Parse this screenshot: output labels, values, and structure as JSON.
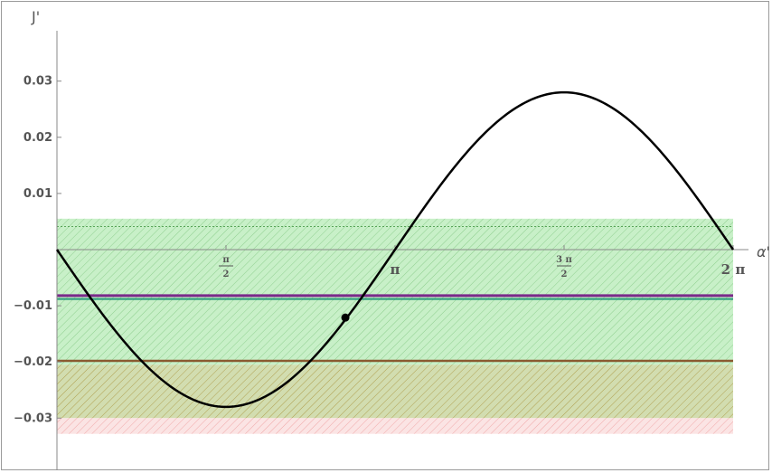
{
  "chart_data": {
    "type": "line",
    "title": "",
    "xlabel": "α'",
    "ylabel": "J'",
    "xlim": [
      0,
      6.2832
    ],
    "ylim": [
      -0.036,
      0.038
    ],
    "y_ticks": [
      {
        "value": 0.03,
        "label": "0.03"
      },
      {
        "value": 0.02,
        "label": "0.02"
      },
      {
        "value": 0.01,
        "label": "0.01"
      },
      {
        "value": -0.01,
        "label": "−0.01"
      },
      {
        "value": -0.02,
        "label": "−0.02"
      },
      {
        "value": -0.03,
        "label": "−0.03"
      }
    ],
    "x_ticks": [
      {
        "value": 1.5708,
        "num": "π",
        "den": "2",
        "label": ""
      },
      {
        "value": 3.1416,
        "num": "",
        "den": "",
        "label": "π"
      },
      {
        "value": 4.7124,
        "num": "3 π",
        "den": "2",
        "label": ""
      },
      {
        "value": 6.2832,
        "num": "",
        "den": "",
        "label": "2 π"
      }
    ],
    "curve": {
      "function": "J' = -0.028 sin(α')",
      "x": [
        0,
        0.3927,
        0.7854,
        1.1781,
        1.5708,
        1.9635,
        2.3562,
        2.7489,
        3.1416,
        3.5343,
        3.927,
        4.3197,
        4.7124,
        5.1051,
        5.4978,
        5.8905,
        6.2832
      ],
      "y": [
        0,
        -0.0107,
        -0.0198,
        -0.0259,
        -0.028,
        -0.0259,
        -0.0198,
        -0.0107,
        0,
        0.0107,
        0.0198,
        0.0259,
        0.028,
        0.0259,
        0.0198,
        0.0107,
        0
      ],
      "color": "#000000"
    },
    "marker_point": {
      "x": 2.68,
      "y": -0.0121
    },
    "bands": [
      {
        "y_from": -0.0205,
        "y_to": 0.0055,
        "fill": "#c8f0c8",
        "hatch": "#8fcf8f"
      },
      {
        "y_from": -0.03,
        "y_to": -0.0205,
        "fill": "#d2ddb0",
        "hatch": "#b0a050"
      },
      {
        "y_from": -0.0328,
        "y_to": -0.03,
        "fill": "#fbe4e4",
        "hatch": "#f0a8a8"
      }
    ],
    "band_x_range": [
      0,
      6.2832
    ],
    "h_lines": [
      {
        "y": -0.0082,
        "color": "#7a2a8a",
        "width": 3
      },
      {
        "y": -0.0088,
        "color": "#2a9a7a",
        "width": 2
      },
      {
        "y": -0.0198,
        "color": "#8a5a30",
        "width": 2.5
      },
      {
        "y": 0.0041,
        "color": "#4a9a4a",
        "width": 0.8,
        "dashed": true
      }
    ]
  }
}
